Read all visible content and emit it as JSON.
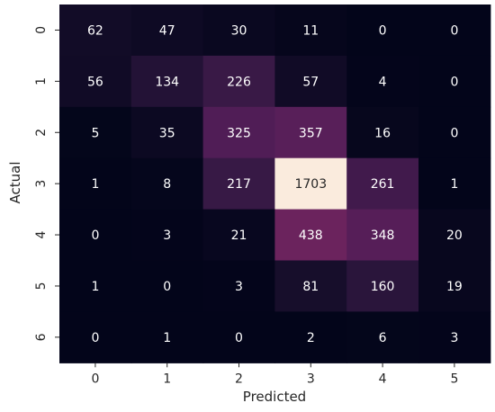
{
  "chart_data": {
    "type": "heatmap",
    "title": "",
    "xlabel": "Predicted",
    "ylabel": "Actual",
    "x_categories": [
      "0",
      "1",
      "2",
      "3",
      "4",
      "5"
    ],
    "y_categories": [
      "0",
      "1",
      "2",
      "3",
      "4",
      "5",
      "6"
    ],
    "values": [
      [
        62,
        47,
        30,
        11,
        0,
        0
      ],
      [
        56,
        134,
        226,
        57,
        4,
        0
      ],
      [
        5,
        35,
        325,
        357,
        16,
        0
      ],
      [
        1,
        8,
        217,
        1703,
        261,
        1
      ],
      [
        0,
        3,
        21,
        438,
        348,
        20
      ],
      [
        1,
        0,
        3,
        81,
        160,
        19
      ],
      [
        0,
        1,
        0,
        2,
        6,
        3
      ]
    ],
    "value_range": [
      0,
      1703
    ],
    "colormap": "rocket",
    "colorbar": false,
    "annotated": true,
    "grid": false
  }
}
